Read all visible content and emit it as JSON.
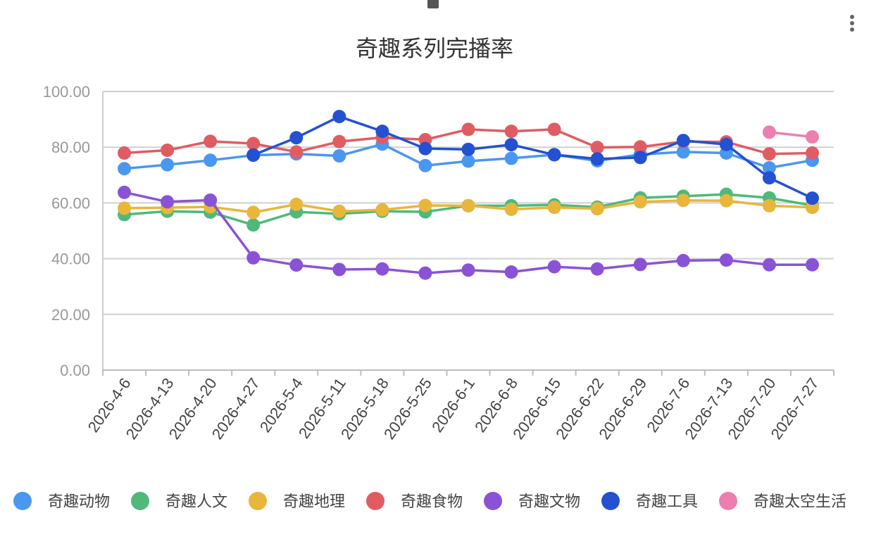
{
  "chart_data": {
    "type": "line",
    "title": "奇趣系列完播率",
    "xlabel": "",
    "ylabel": "",
    "ylim": [
      0,
      100
    ],
    "yticks": [
      "0.00",
      "20.00",
      "40.00",
      "60.00",
      "80.00",
      "100.00"
    ],
    "grid": true,
    "legend_position": "bottom",
    "x": [
      "2026-4-6",
      "2026-4-13",
      "2026-4-20",
      "2026-4-27",
      "2026-5-4",
      "2026-5-11",
      "2026-5-18",
      "2026-5-25",
      "2026-6-1",
      "2026-6-8",
      "2026-6-15",
      "2026-6-22",
      "2026-6-29",
      "2026-7-6",
      "2026-7-13",
      "2026-7-20",
      "2026-7-27"
    ],
    "series": [
      {
        "name": "奇趣动物",
        "color": "#4a97ef",
        "values": [
          72.3,
          73.7,
          75.3,
          77.1,
          77.6,
          76.9,
          81.1,
          73.4,
          75.0,
          76.0,
          77.3,
          75.1,
          77.4,
          78.3,
          77.9,
          72.6,
          75.3
        ]
      },
      {
        "name": "奇趣人文",
        "color": "#4fb97b",
        "values": [
          55.8,
          57.0,
          56.7,
          52.1,
          56.8,
          56.1,
          57.0,
          56.8,
          59.0,
          59.0,
          59.3,
          58.5,
          61.8,
          62.4,
          63.1,
          61.8,
          59.1
        ]
      },
      {
        "name": "奇趣地理",
        "color": "#e8b63b",
        "values": [
          58.1,
          58.3,
          58.6,
          56.6,
          59.5,
          57.0,
          57.5,
          59.1,
          59.0,
          57.7,
          58.4,
          57.9,
          60.4,
          60.9,
          60.8,
          59.0,
          58.4
        ]
      },
      {
        "name": "奇趣食物",
        "color": "#e05c63",
        "values": [
          77.9,
          78.9,
          82.1,
          81.3,
          78.3,
          82.0,
          83.5,
          82.7,
          86.4,
          85.7,
          86.4,
          79.9,
          80.1,
          82.0,
          81.9,
          77.6,
          77.9
        ]
      },
      {
        "name": "奇趣文物",
        "color": "#8a53d6",
        "values": [
          63.8,
          60.4,
          61.0,
          40.3,
          37.7,
          36.1,
          36.3,
          34.8,
          35.9,
          35.2,
          37.1,
          36.3,
          37.9,
          39.3,
          39.5,
          37.8,
          37.8
        ]
      },
      {
        "name": "奇趣工具",
        "color": "#2351d1",
        "values": [
          null,
          null,
          null,
          77.2,
          83.4,
          91.0,
          85.7,
          79.5,
          79.2,
          80.9,
          77.3,
          75.8,
          76.3,
          82.4,
          81.0,
          69.0,
          61.7
        ]
      },
      {
        "name": "奇趣太空生活",
        "color": "#ec7faf",
        "values": [
          null,
          null,
          null,
          null,
          null,
          null,
          null,
          null,
          null,
          null,
          null,
          null,
          null,
          null,
          null,
          85.4,
          83.7
        ]
      }
    ]
  }
}
